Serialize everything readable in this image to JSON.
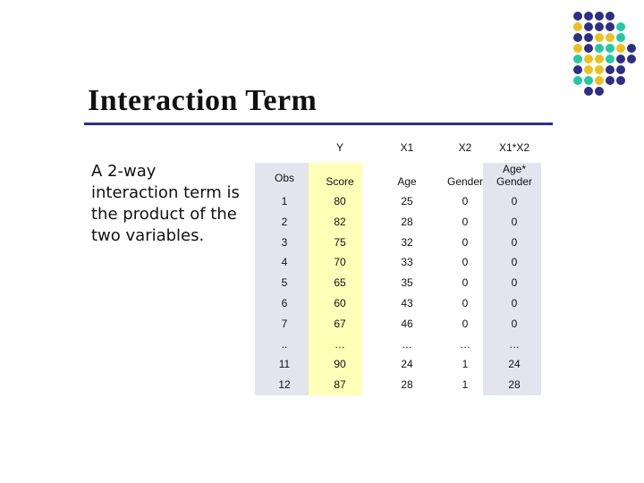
{
  "slide": {
    "title": "Interaction Term",
    "body": "A 2-way interaction term is the product of the two variables."
  },
  "table": {
    "var_headers": [
      "",
      "Y",
      "X1",
      "X2",
      "X1*X2"
    ],
    "col_headers": [
      "Obs",
      "Score",
      "Age",
      "Gender",
      "Age* Gender"
    ],
    "rows": [
      [
        "1",
        "80",
        "25",
        "0",
        "0"
      ],
      [
        "2",
        "82",
        "28",
        "0",
        "0"
      ],
      [
        "3",
        "75",
        "32",
        "0",
        "0"
      ],
      [
        "4",
        "70",
        "33",
        "0",
        "0"
      ],
      [
        "5",
        "65",
        "35",
        "0",
        "0"
      ],
      [
        "6",
        "60",
        "43",
        "0",
        "0"
      ],
      [
        "7",
        "67",
        "46",
        "0",
        "0"
      ],
      [
        "..",
        "…",
        "…",
        "…",
        "…"
      ],
      [
        "11",
        "90",
        "24",
        "1",
        "24"
      ],
      [
        "12",
        "87",
        "28",
        "1",
        "28"
      ]
    ]
  },
  "decor": {
    "colors": {
      "navy": "#2e2e86",
      "yellow": "#ecc219",
      "teal": "#23c8a4"
    },
    "dot_grid": [
      [
        "navy",
        "navy",
        "navy",
        "navy"
      ],
      [
        "yellow",
        "navy",
        "navy",
        "navy",
        "teal"
      ],
      [
        "navy",
        "navy",
        "yellow",
        "yellow",
        "teal"
      ],
      [
        "yellow",
        "navy",
        "teal",
        "teal",
        "yellow",
        "navy"
      ],
      [
        "teal",
        "yellow",
        "yellow",
        "teal",
        "navy",
        "navy"
      ],
      [
        "navy",
        "yellow",
        "yellow",
        "navy",
        "navy"
      ],
      [
        "teal",
        "teal",
        "yellow",
        "navy",
        "navy"
      ],
      [
        "navy",
        "navy"
      ]
    ]
  }
}
